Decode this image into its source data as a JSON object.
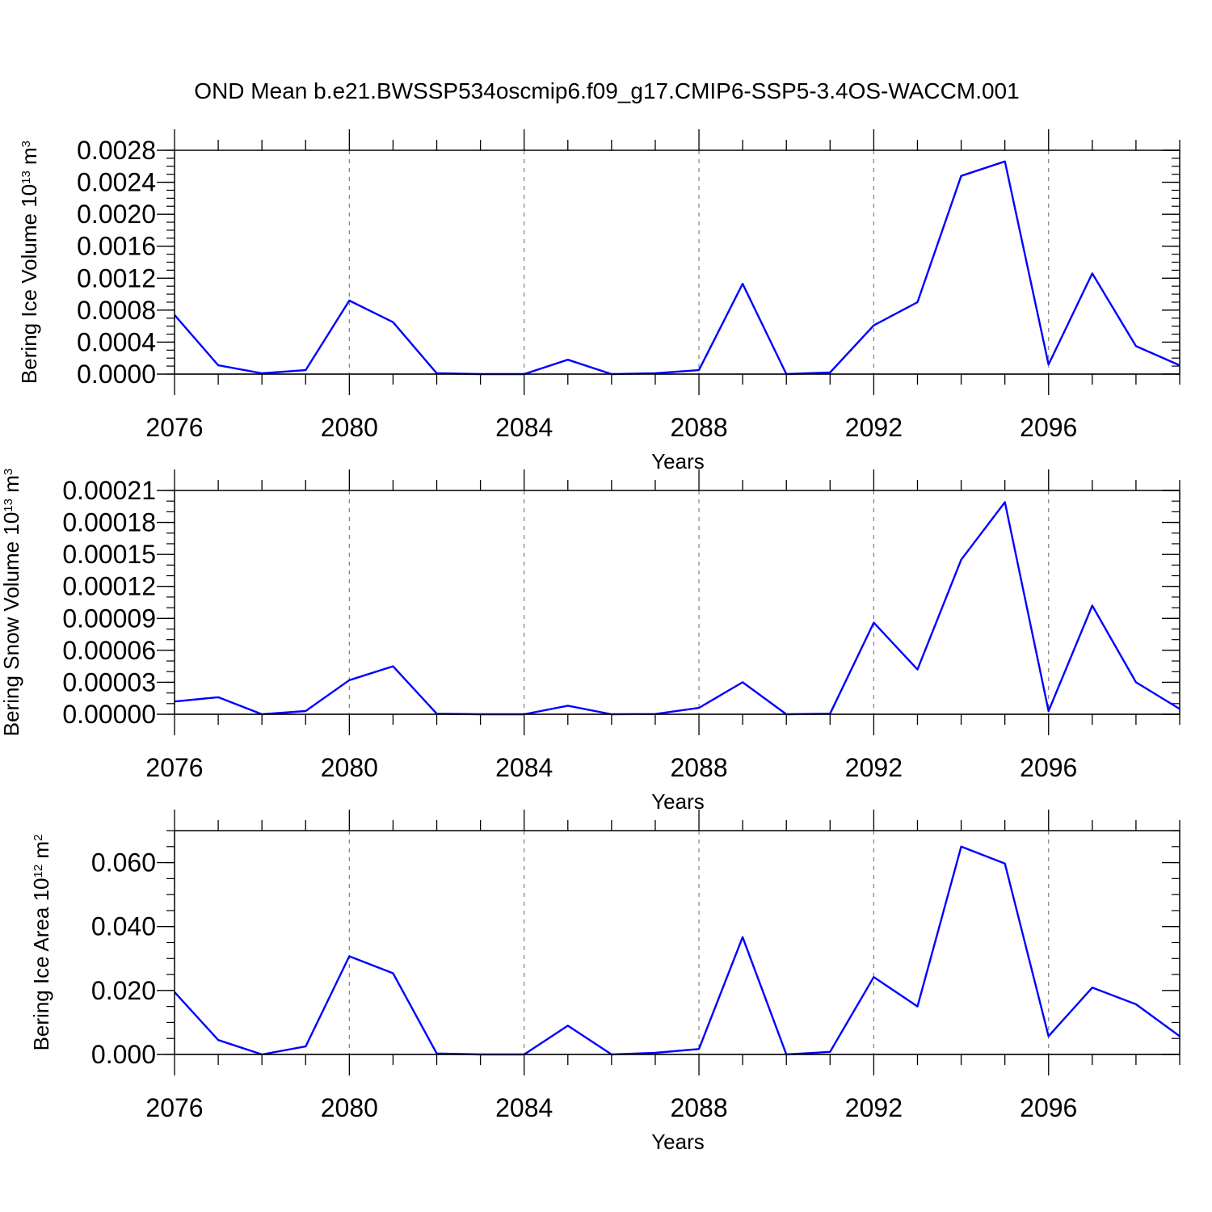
{
  "title": "OND Mean b.e21.BWSSP534oscmip6.f09_g17.CMIP6-SSP5-3.4OS-WACCM.001",
  "chart_data": [
    {
      "type": "line",
      "title": "",
      "xlabel": "Years",
      "ylabel": {
        "prefix": "Bering Ice Volume 10",
        "exp": "13",
        "unit": " m",
        "unit_exp": "3"
      },
      "xlim": [
        2076,
        2099
      ],
      "ylim": [
        0,
        0.0028
      ],
      "x_ticks": [
        2076,
        2080,
        2084,
        2088,
        2092,
        2096
      ],
      "x_tick_labels": [
        "2076",
        "2080",
        "2084",
        "2088",
        "2092",
        "2096"
      ],
      "y_ticks": [
        0,
        0.0004,
        0.0008,
        0.0012,
        0.0016,
        0.002,
        0.0024,
        0.0028
      ],
      "y_tick_labels": [
        "0.0000",
        "0.0004",
        "0.0008",
        "0.0012",
        "0.0016",
        "0.0020",
        "0.0024",
        "0.0028"
      ],
      "y_minor_step": 0.0001,
      "grid": "vertical dashed at major x ticks",
      "color": "#0000ff",
      "x": [
        2076,
        2077,
        2078,
        2079,
        2080,
        2081,
        2082,
        2083,
        2084,
        2085,
        2086,
        2087,
        2088,
        2089,
        2090,
        2091,
        2092,
        2093,
        2094,
        2095,
        2096,
        2097,
        2098,
        2099
      ],
      "y": [
        0.00074,
        0.00011,
        1e-05,
        5e-05,
        0.00092,
        0.00065,
        1e-05,
        0.0,
        0.0,
        0.00018,
        0.0,
        1e-05,
        5e-05,
        0.00113,
        0.0,
        2e-05,
        0.00061,
        0.0009,
        0.00248,
        0.00266,
        0.00012,
        0.00126,
        0.00035,
        0.00011
      ]
    },
    {
      "type": "line",
      "title": "",
      "xlabel": "Years",
      "ylabel": {
        "prefix": "Bering Snow Volume 10",
        "exp": "13",
        "unit": " m",
        "unit_exp": "3"
      },
      "xlim": [
        2076,
        2099
      ],
      "ylim": [
        0,
        0.00021
      ],
      "x_ticks": [
        2076,
        2080,
        2084,
        2088,
        2092,
        2096
      ],
      "x_tick_labels": [
        "2076",
        "2080",
        "2084",
        "2088",
        "2092",
        "2096"
      ],
      "y_ticks": [
        0,
        3e-05,
        6e-05,
        9e-05,
        0.00012,
        0.00015,
        0.00018,
        0.00021
      ],
      "y_tick_labels": [
        "0.00000",
        "0.00003",
        "0.00006",
        "0.00009",
        "0.00012",
        "0.00015",
        "0.00018",
        "0.00021"
      ],
      "y_minor_step": 1e-05,
      "grid": "vertical dashed at major x ticks",
      "color": "#0000ff",
      "x": [
        2076,
        2077,
        2078,
        2079,
        2080,
        2081,
        2082,
        2083,
        2084,
        2085,
        2086,
        2087,
        2088,
        2089,
        2090,
        2091,
        2092,
        2093,
        2094,
        2095,
        2096,
        2097,
        2098,
        2099
      ],
      "y": [
        1.2e-05,
        1.6e-05,
        0.0,
        3e-06,
        3.2e-05,
        4.5e-05,
        5e-07,
        0.0,
        0.0,
        8e-06,
        0.0,
        2e-07,
        6e-06,
        3e-05,
        0.0,
        5e-07,
        8.6e-05,
        4.2e-05,
        0.000145,
        0.000199,
        3e-06,
        0.000102,
        3e-05,
        5e-06
      ]
    },
    {
      "type": "line",
      "title": "",
      "xlabel": "Years",
      "ylabel": {
        "prefix": "Bering Ice Area 10",
        "exp": "12",
        "unit": " m",
        "unit_exp": "2"
      },
      "xlim": [
        2076,
        2099
      ],
      "ylim": [
        0,
        0.07
      ],
      "x_ticks": [
        2076,
        2080,
        2084,
        2088,
        2092,
        2096
      ],
      "x_tick_labels": [
        "2076",
        "2080",
        "2084",
        "2088",
        "2092",
        "2096"
      ],
      "y_ticks": [
        0,
        0.02,
        0.04,
        0.06
      ],
      "y_tick_labels": [
        "0.000",
        "0.020",
        "0.040",
        "0.060"
      ],
      "y_minor_step": 0.005,
      "grid": "vertical dashed at major x ticks",
      "color": "#0000ff",
      "x": [
        2076,
        2077,
        2078,
        2079,
        2080,
        2081,
        2082,
        2083,
        2084,
        2085,
        2086,
        2087,
        2088,
        2089,
        2090,
        2091,
        2092,
        2093,
        2094,
        2095,
        2096,
        2097,
        2098,
        2099
      ],
      "y": [
        0.0195,
        0.0045,
        0.0,
        0.0025,
        0.0307,
        0.0254,
        0.0003,
        0.0,
        0.0,
        0.009,
        0.0,
        0.0005,
        0.0017,
        0.0367,
        0.0,
        0.0008,
        0.0242,
        0.015,
        0.065,
        0.0597,
        0.0057,
        0.0209,
        0.0157,
        0.0057
      ]
    }
  ]
}
